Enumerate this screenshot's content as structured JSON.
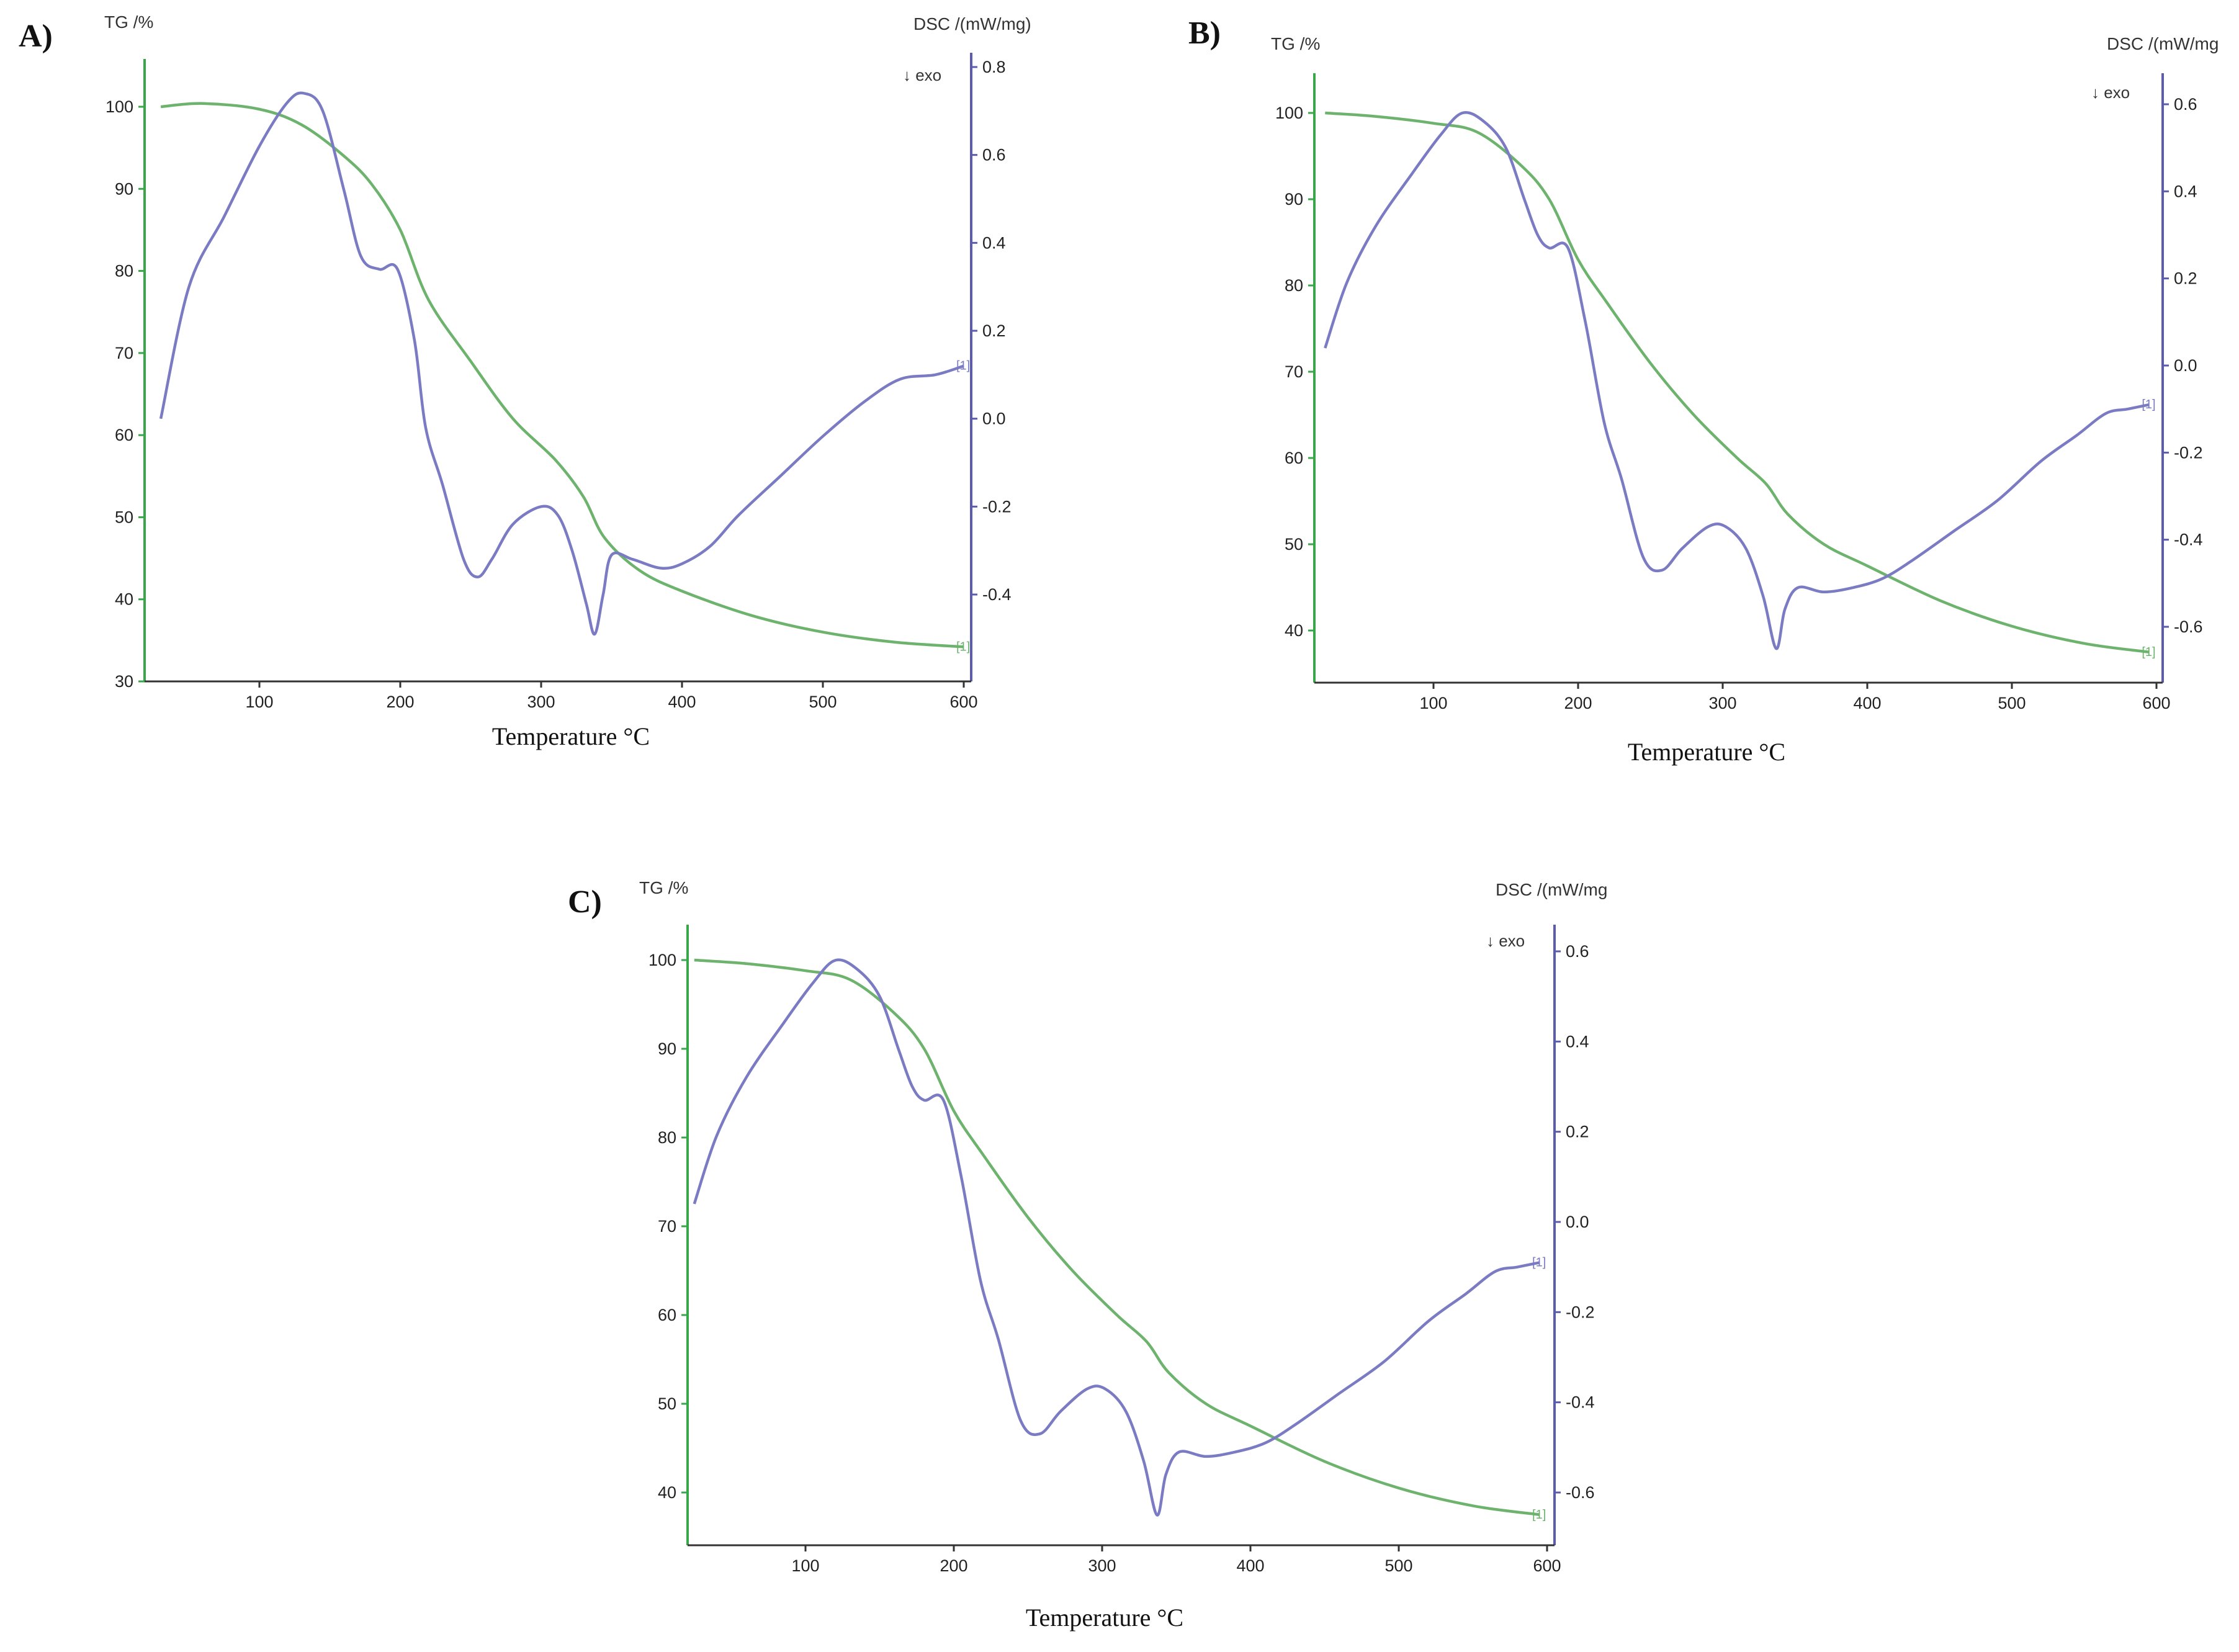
{
  "chart_data": [
    {
      "type": "line",
      "panel": "A)",
      "tg_label": "TG /%",
      "dsc_label": "DSC /(mW/mg)",
      "exo_label": "↓ exo",
      "xlabel": "Temperature °C",
      "xlim": [
        25,
        600
      ],
      "x_ticks": [
        100,
        200,
        300,
        400,
        500,
        600
      ],
      "tg_ylim": [
        30,
        105
      ],
      "tg_ticks": [
        30,
        40,
        50,
        60,
        70,
        80,
        90,
        100
      ],
      "dsc_ylim": [
        -0.6,
        0.8
      ],
      "dsc_ticks": [
        -0.4,
        -0.2,
        0.0,
        0.2,
        0.4,
        0.6,
        0.8
      ],
      "dsc_tick_labels": [
        "-0.4",
        "-0.2",
        "0.0",
        "0.2",
        "0.4",
        "0.6",
        "0.8"
      ],
      "series": [
        {
          "name": "TG",
          "axis": "tg",
          "color": "#6db36d",
          "end_mark": "[1]",
          "points": [
            [
              30,
              100
            ],
            [
              60,
              100.4
            ],
            [
              100,
              99.7
            ],
            [
              130,
              97.8
            ],
            [
              160,
              94
            ],
            [
              180,
              90.5
            ],
            [
              200,
              85
            ],
            [
              220,
              76.5
            ],
            [
              250,
              69
            ],
            [
              280,
              62
            ],
            [
              310,
              57
            ],
            [
              330,
              52.5
            ],
            [
              345,
              47.5
            ],
            [
              370,
              43.5
            ],
            [
              400,
              41
            ],
            [
              450,
              38
            ],
            [
              500,
              36
            ],
            [
              550,
              34.8
            ],
            [
              600,
              34.2
            ]
          ]
        },
        {
          "name": "DSC",
          "axis": "dsc",
          "color": "#7b7bc4",
          "end_mark": "[1]",
          "points": [
            [
              30,
              0.0
            ],
            [
              50,
              0.3
            ],
            [
              75,
              0.46
            ],
            [
              100,
              0.62
            ],
            [
              120,
              0.72
            ],
            [
              132,
              0.74
            ],
            [
              145,
              0.7
            ],
            [
              160,
              0.52
            ],
            [
              172,
              0.37
            ],
            [
              185,
              0.34
            ],
            [
              198,
              0.34
            ],
            [
              210,
              0.18
            ],
            [
              218,
              -0.02
            ],
            [
              230,
              -0.15
            ],
            [
              245,
              -0.32
            ],
            [
              255,
              -0.36
            ],
            [
              265,
              -0.32
            ],
            [
              280,
              -0.24
            ],
            [
              300,
              -0.2
            ],
            [
              312,
              -0.22
            ],
            [
              322,
              -0.3
            ],
            [
              332,
              -0.42
            ],
            [
              338,
              -0.49
            ],
            [
              344,
              -0.4
            ],
            [
              350,
              -0.31
            ],
            [
              365,
              -0.32
            ],
            [
              385,
              -0.34
            ],
            [
              400,
              -0.33
            ],
            [
              420,
              -0.29
            ],
            [
              440,
              -0.22
            ],
            [
              470,
              -0.13
            ],
            [
              500,
              -0.04
            ],
            [
              530,
              0.04
            ],
            [
              555,
              0.09
            ],
            [
              580,
              0.1
            ],
            [
              600,
              0.12
            ]
          ]
        }
      ]
    },
    {
      "type": "line",
      "panel": "B)",
      "tg_label": "TG /%",
      "dsc_label": "DSC /(mW/mg",
      "exo_label": "↓ exo",
      "xlabel": "Temperature °C",
      "xlim": [
        18,
        600
      ],
      "x_ticks": [
        100,
        200,
        300,
        400,
        500,
        600
      ],
      "tg_ylim": [
        34,
        105
      ],
      "tg_ticks": [
        40,
        50,
        60,
        70,
        80,
        90,
        100
      ],
      "dsc_ylim": [
        -0.7,
        0.67
      ],
      "dsc_ticks": [
        -0.6,
        -0.4,
        -0.2,
        0.0,
        0.2,
        0.4,
        0.6
      ],
      "dsc_tick_labels": [
        "-0.6",
        "-0.4",
        "-0.2",
        "0.0",
        "0.2",
        "0.4",
        "0.6"
      ],
      "series": [
        {
          "name": "TG",
          "axis": "tg",
          "color": "#6db36d",
          "end_mark": "[1]",
          "points": [
            [
              25,
              100
            ],
            [
              60,
              99.6
            ],
            [
              100,
              98.8
            ],
            [
              130,
              97.8
            ],
            [
              160,
              94
            ],
            [
              180,
              90
            ],
            [
              200,
              83
            ],
            [
              220,
              78
            ],
            [
              250,
              71
            ],
            [
              280,
              65
            ],
            [
              310,
              60
            ],
            [
              330,
              57
            ],
            [
              345,
              53.5
            ],
            [
              370,
              50
            ],
            [
              400,
              47.5
            ],
            [
              450,
              43.5
            ],
            [
              500,
              40.5
            ],
            [
              550,
              38.5
            ],
            [
              595,
              37.5
            ]
          ]
        },
        {
          "name": "DSC",
          "axis": "dsc",
          "color": "#7b7bc4",
          "end_mark": "[1]",
          "points": [
            [
              25,
              0.04
            ],
            [
              40,
              0.19
            ],
            [
              60,
              0.32
            ],
            [
              85,
              0.44
            ],
            [
              105,
              0.53
            ],
            [
              120,
              0.58
            ],
            [
              135,
              0.56
            ],
            [
              150,
              0.5
            ],
            [
              163,
              0.38
            ],
            [
              172,
              0.3
            ],
            [
              180,
              0.27
            ],
            [
              193,
              0.27
            ],
            [
              205,
              0.1
            ],
            [
              218,
              -0.13
            ],
            [
              230,
              -0.26
            ],
            [
              245,
              -0.44
            ],
            [
              258,
              -0.47
            ],
            [
              272,
              -0.42
            ],
            [
              290,
              -0.37
            ],
            [
              302,
              -0.37
            ],
            [
              316,
              -0.42
            ],
            [
              328,
              -0.53
            ],
            [
              337,
              -0.65
            ],
            [
              343,
              -0.56
            ],
            [
              352,
              -0.51
            ],
            [
              370,
              -0.52
            ],
            [
              390,
              -0.51
            ],
            [
              410,
              -0.49
            ],
            [
              430,
              -0.45
            ],
            [
              460,
              -0.38
            ],
            [
              490,
              -0.31
            ],
            [
              520,
              -0.22
            ],
            [
              545,
              -0.16
            ],
            [
              565,
              -0.11
            ],
            [
              580,
              -0.1
            ],
            [
              595,
              -0.09
            ]
          ]
        }
      ]
    },
    {
      "type": "line",
      "panel": "C)",
      "tg_label": "TG /%",
      "dsc_label": "DSC /(mW/mg",
      "exo_label": "↓ exo",
      "xlabel": "Temperature °C",
      "xlim": [
        18,
        600
      ],
      "x_ticks": [
        100,
        200,
        300,
        400,
        500,
        600
      ],
      "tg_ylim": [
        34,
        105
      ],
      "tg_ticks": [
        40,
        50,
        60,
        70,
        80,
        90,
        100
      ],
      "dsc_ylim": [
        -0.7,
        0.67
      ],
      "dsc_ticks": [
        -0.6,
        -0.4,
        -0.2,
        0.0,
        0.2,
        0.4,
        0.6
      ],
      "dsc_tick_labels": [
        "-0.6",
        "-0.4",
        "-0.2",
        "0.0",
        "0.2",
        "0.4",
        "0.6"
      ],
      "series": [
        {
          "name": "TG",
          "axis": "tg",
          "color": "#6db36d",
          "end_mark": "[1]",
          "points": [
            [
              25,
              100
            ],
            [
              60,
              99.6
            ],
            [
              100,
              98.8
            ],
            [
              130,
              97.8
            ],
            [
              160,
              94
            ],
            [
              180,
              90
            ],
            [
              200,
              83
            ],
            [
              220,
              78
            ],
            [
              250,
              71
            ],
            [
              280,
              65
            ],
            [
              310,
              60
            ],
            [
              330,
              57
            ],
            [
              345,
              53.5
            ],
            [
              370,
              50
            ],
            [
              400,
              47.5
            ],
            [
              450,
              43.5
            ],
            [
              500,
              40.5
            ],
            [
              550,
              38.5
            ],
            [
              595,
              37.5
            ]
          ]
        },
        {
          "name": "DSC",
          "axis": "dsc",
          "color": "#7b7bc4",
          "end_mark": "[1]",
          "points": [
            [
              25,
              0.04
            ],
            [
              40,
              0.19
            ],
            [
              60,
              0.32
            ],
            [
              85,
              0.44
            ],
            [
              105,
              0.53
            ],
            [
              120,
              0.58
            ],
            [
              135,
              0.56
            ],
            [
              150,
              0.5
            ],
            [
              163,
              0.38
            ],
            [
              172,
              0.3
            ],
            [
              180,
              0.27
            ],
            [
              193,
              0.27
            ],
            [
              205,
              0.1
            ],
            [
              218,
              -0.13
            ],
            [
              230,
              -0.26
            ],
            [
              245,
              -0.44
            ],
            [
              258,
              -0.47
            ],
            [
              272,
              -0.42
            ],
            [
              290,
              -0.37
            ],
            [
              302,
              -0.37
            ],
            [
              316,
              -0.42
            ],
            [
              328,
              -0.53
            ],
            [
              337,
              -0.65
            ],
            [
              343,
              -0.56
            ],
            [
              352,
              -0.51
            ],
            [
              370,
              -0.52
            ],
            [
              390,
              -0.51
            ],
            [
              410,
              -0.49
            ],
            [
              430,
              -0.45
            ],
            [
              460,
              -0.38
            ],
            [
              490,
              -0.31
            ],
            [
              520,
              -0.22
            ],
            [
              545,
              -0.16
            ],
            [
              565,
              -0.11
            ],
            [
              580,
              -0.1
            ],
            [
              595,
              -0.09
            ]
          ]
        }
      ]
    }
  ]
}
